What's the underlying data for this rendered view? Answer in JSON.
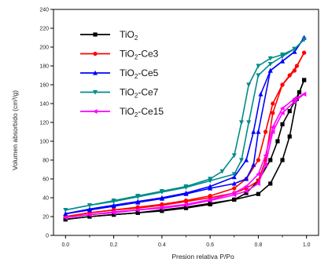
{
  "chart_data": {
    "type": "line",
    "title": "",
    "xlabel": "Presion relativa P/Po",
    "ylabel": "Volumen absorbido (cm³/g)",
    "xlim": [
      -0.05,
      1.05
    ],
    "ylim": [
      0,
      240
    ],
    "x_ticks": [
      "0.0",
      "0.2",
      "0.4",
      "0.6",
      "0.8",
      "1.0"
    ],
    "x_tick_values": [
      0.0,
      0.2,
      0.4,
      0.6,
      0.8,
      1.0
    ],
    "y_ticks": [
      "0",
      "20",
      "40",
      "60",
      "80",
      "100",
      "120",
      "140",
      "160",
      "180",
      "200",
      "220",
      "240"
    ],
    "y_tick_values": [
      0,
      20,
      40,
      60,
      80,
      100,
      120,
      140,
      160,
      180,
      200,
      220,
      240
    ],
    "grid": false,
    "legend": "top-left",
    "series": [
      {
        "name": "TiO",
        "sub": "2",
        "name_suffix": "",
        "color": "#000000",
        "marker": "square",
        "adsorption": [
          [
            0.0,
            17
          ],
          [
            0.1,
            20
          ],
          [
            0.2,
            22
          ],
          [
            0.3,
            24
          ],
          [
            0.4,
            26
          ],
          [
            0.5,
            29
          ],
          [
            0.6,
            33
          ],
          [
            0.7,
            38
          ],
          [
            0.75,
            45
          ],
          [
            0.8,
            58
          ],
          [
            0.85,
            80
          ],
          [
            0.88,
            100
          ],
          [
            0.9,
            118
          ],
          [
            0.93,
            132
          ],
          [
            0.95,
            142
          ],
          [
            0.97,
            152
          ],
          [
            0.99,
            165
          ]
        ],
        "desorption": [
          [
            0.99,
            165
          ],
          [
            0.96,
            145
          ],
          [
            0.93,
            105
          ],
          [
            0.9,
            80
          ],
          [
            0.85,
            55
          ],
          [
            0.8,
            44
          ],
          [
            0.7,
            38
          ],
          [
            0.6,
            34
          ],
          [
            0.5,
            30
          ],
          [
            0.4,
            27
          ],
          [
            0.3,
            24
          ],
          [
            0.2,
            22
          ],
          [
            0.1,
            20
          ],
          [
            0.0,
            17
          ]
        ]
      },
      {
        "name": "TiO",
        "sub": "2",
        "name_suffix": "-Ce3",
        "color": "#ff0000",
        "marker": "circle",
        "adsorption": [
          [
            0.0,
            20
          ],
          [
            0.1,
            24
          ],
          [
            0.2,
            27
          ],
          [
            0.3,
            30
          ],
          [
            0.4,
            33
          ],
          [
            0.5,
            37
          ],
          [
            0.6,
            42
          ],
          [
            0.7,
            50
          ],
          [
            0.75,
            60
          ],
          [
            0.8,
            80
          ],
          [
            0.83,
            110
          ],
          [
            0.86,
            140
          ],
          [
            0.9,
            160
          ],
          [
            0.93,
            170
          ],
          [
            0.96,
            180
          ],
          [
            0.99,
            194
          ]
        ],
        "desorption": [
          [
            0.99,
            194
          ],
          [
            0.95,
            175
          ],
          [
            0.9,
            160
          ],
          [
            0.86,
            130
          ],
          [
            0.83,
            80
          ],
          [
            0.8,
            58
          ],
          [
            0.75,
            50
          ],
          [
            0.7,
            45
          ],
          [
            0.6,
            40
          ],
          [
            0.5,
            36
          ],
          [
            0.4,
            32
          ],
          [
            0.3,
            29
          ],
          [
            0.2,
            27
          ],
          [
            0.1,
            24
          ],
          [
            0.0,
            20
          ]
        ]
      },
      {
        "name": "TiO",
        "sub": "2",
        "name_suffix": "-Ce5",
        "color": "#0000ff",
        "marker": "triangle",
        "adsorption": [
          [
            0.0,
            23
          ],
          [
            0.1,
            28
          ],
          [
            0.2,
            32
          ],
          [
            0.3,
            36
          ],
          [
            0.4,
            40
          ],
          [
            0.5,
            45
          ],
          [
            0.6,
            52
          ],
          [
            0.7,
            62
          ],
          [
            0.75,
            80
          ],
          [
            0.78,
            110
          ],
          [
            0.81,
            150
          ],
          [
            0.85,
            175
          ],
          [
            0.9,
            185
          ],
          [
            0.95,
            195
          ],
          [
            0.99,
            210
          ]
        ],
        "desorption": [
          [
            0.99,
            210
          ],
          [
            0.95,
            195
          ],
          [
            0.9,
            185
          ],
          [
            0.85,
            175
          ],
          [
            0.8,
            110
          ],
          [
            0.78,
            75
          ],
          [
            0.75,
            60
          ],
          [
            0.7,
            55
          ],
          [
            0.6,
            50
          ],
          [
            0.5,
            44
          ],
          [
            0.4,
            39
          ],
          [
            0.3,
            35
          ],
          [
            0.2,
            31
          ],
          [
            0.1,
            27
          ],
          [
            0.0,
            23
          ]
        ]
      },
      {
        "name": "TiO",
        "sub": "2",
        "name_suffix": "-Ce7",
        "color": "#008b8b",
        "marker": "triangle-down",
        "adsorption": [
          [
            0.0,
            27
          ],
          [
            0.1,
            32
          ],
          [
            0.2,
            37
          ],
          [
            0.3,
            42
          ],
          [
            0.4,
            47
          ],
          [
            0.5,
            52
          ],
          [
            0.6,
            60
          ],
          [
            0.65,
            68
          ],
          [
            0.7,
            85
          ],
          [
            0.73,
            120
          ],
          [
            0.76,
            160
          ],
          [
            0.8,
            180
          ],
          [
            0.85,
            188
          ],
          [
            0.9,
            192
          ],
          [
            0.95,
            198
          ],
          [
            0.99,
            208
          ]
        ],
        "desorption": [
          [
            0.99,
            208
          ],
          [
            0.95,
            198
          ],
          [
            0.9,
            190
          ],
          [
            0.85,
            182
          ],
          [
            0.8,
            170
          ],
          [
            0.76,
            120
          ],
          [
            0.73,
            80
          ],
          [
            0.7,
            65
          ],
          [
            0.6,
            58
          ],
          [
            0.5,
            51
          ],
          [
            0.4,
            46
          ],
          [
            0.3,
            41
          ],
          [
            0.2,
            36
          ],
          [
            0.1,
            32
          ],
          [
            0.0,
            27
          ]
        ]
      },
      {
        "name": "TiO",
        "sub": "2",
        "name_suffix": "-Ce15",
        "color": "#ff00ff",
        "marker": "triangle-left",
        "adsorption": [
          [
            0.0,
            19
          ],
          [
            0.1,
            22
          ],
          [
            0.2,
            25
          ],
          [
            0.3,
            27
          ],
          [
            0.4,
            30
          ],
          [
            0.5,
            33
          ],
          [
            0.6,
            38
          ],
          [
            0.7,
            45
          ],
          [
            0.75,
            52
          ],
          [
            0.8,
            65
          ],
          [
            0.83,
            85
          ],
          [
            0.86,
            115
          ],
          [
            0.9,
            135
          ],
          [
            0.95,
            145
          ],
          [
            0.99,
            150
          ]
        ],
        "desorption": [
          [
            0.99,
            150
          ],
          [
            0.95,
            142
          ],
          [
            0.9,
            130
          ],
          [
            0.86,
            110
          ],
          [
            0.83,
            75
          ],
          [
            0.8,
            55
          ],
          [
            0.75,
            47
          ],
          [
            0.7,
            43
          ],
          [
            0.6,
            37
          ],
          [
            0.5,
            32
          ],
          [
            0.4,
            29
          ],
          [
            0.3,
            27
          ],
          [
            0.2,
            24
          ],
          [
            0.1,
            22
          ],
          [
            0.0,
            19
          ]
        ]
      }
    ]
  }
}
